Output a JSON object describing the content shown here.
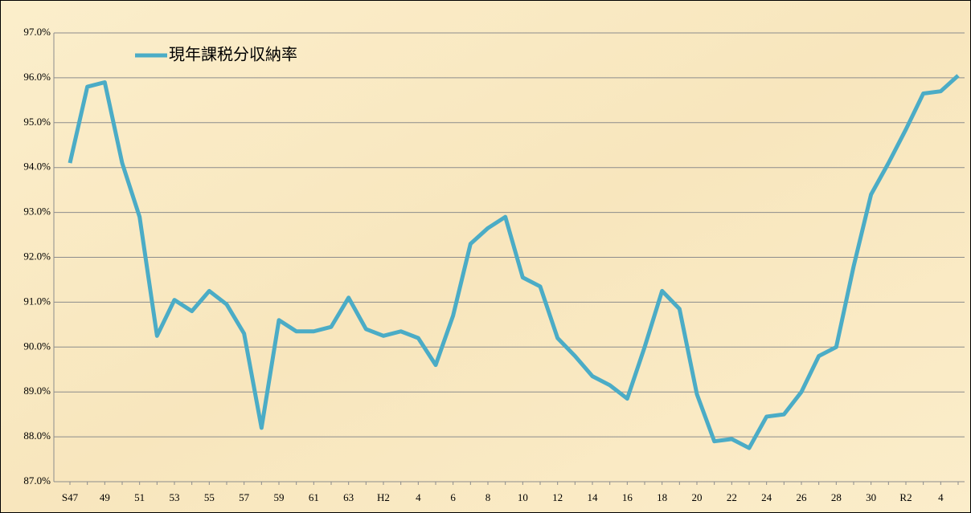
{
  "chart_data": {
    "type": "line",
    "categories": [
      "S47",
      null,
      "49",
      null,
      "51",
      null,
      "53",
      null,
      "55",
      null,
      "57",
      null,
      "59",
      null,
      "61",
      null,
      "63",
      null,
      "H2",
      null,
      "4",
      null,
      "6",
      null,
      "8",
      null,
      "10",
      null,
      "12",
      null,
      "14",
      null,
      "16",
      null,
      "18",
      null,
      "20",
      null,
      "22",
      null,
      "24",
      null,
      "26",
      null,
      "28",
      null,
      "30",
      null,
      "R2",
      null,
      "4",
      null
    ],
    "series": [
      {
        "name": "現年課税分収納率",
        "color": "#4bacc6",
        "values": [
          94.1,
          95.8,
          95.9,
          94.1,
          92.9,
          90.25,
          91.05,
          90.8,
          91.25,
          90.95,
          90.3,
          88.2,
          90.6,
          90.35,
          90.35,
          90.45,
          91.1,
          90.4,
          90.25,
          90.35,
          90.2,
          89.6,
          90.7,
          92.3,
          92.65,
          92.9,
          91.55,
          91.35,
          90.2,
          89.8,
          89.35,
          89.15,
          88.85,
          90.0,
          91.25,
          90.85,
          88.95,
          87.9,
          87.95,
          87.75,
          88.45,
          88.5,
          89.0,
          89.8,
          90.0,
          91.8,
          93.4,
          94.1,
          94.85,
          95.65,
          95.7,
          96.05
        ]
      }
    ],
    "ylim": [
      87,
      97
    ],
    "yticks": [
      {
        "value": 87,
        "label": "87.0%"
      },
      {
        "value": 88,
        "label": "88.0%"
      },
      {
        "value": 89,
        "label": "89.0%"
      },
      {
        "value": 90,
        "label": "90.0%"
      },
      {
        "value": 91,
        "label": "91.0%"
      },
      {
        "value": 92,
        "label": "92.0%"
      },
      {
        "value": 93,
        "label": "93.0%"
      },
      {
        "value": 94,
        "label": "94.0%"
      },
      {
        "value": 95,
        "label": "95.0%"
      },
      {
        "value": 96,
        "label": "96.0%"
      },
      {
        "value": 97,
        "label": "97.0%"
      }
    ],
    "grid": true,
    "legend": "upper left"
  }
}
